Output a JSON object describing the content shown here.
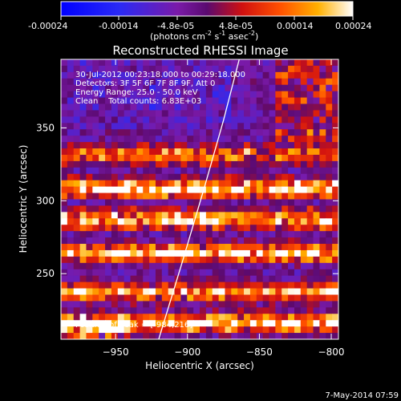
{
  "colorbar": {
    "ticks": [
      "-0.00024",
      "-0.00014",
      "-4.8e-05",
      "4.8e-05",
      "0.00014",
      "0.00024"
    ],
    "units_prefix": "(photons cm",
    "units_exp1": "-2",
    "units_mid": " s",
    "units_exp2": "-1",
    "units_mid2": " asec",
    "units_exp3": "-2",
    "units_suffix": ")"
  },
  "chart_data": {
    "type": "heatmap",
    "title": "Reconstructed RHESSI Image",
    "xlabel": "Heliocentric X (arcsec)",
    "ylabel": "Heliocentric Y (arcsec)",
    "xlim": [
      -988,
      -795
    ],
    "ylim": [
      205,
      397
    ],
    "x_ticks": [
      -950,
      -900,
      -850,
      -800
    ],
    "y_ticks": [
      250,
      300,
      350
    ],
    "colorbar_range": [
      -0.00024,
      0.00024
    ],
    "annotations": [
      "30-Jul-2012 00:23:18.000 to 00:29:18.000",
      "Detectors: 3F 5F 6F 7F 8F 9F, Att 0",
      "Energy Range: 25.0 - 50.0 keV",
      "Clean    Total counts: 6.83E+03"
    ],
    "peak_label": "Position of Peak = [-984,216]",
    "peak": [
      -984,
      216
    ],
    "limb_curve": [
      [
        -920,
        205
      ],
      [
        -903,
        260
      ],
      [
        -888,
        310
      ],
      [
        -875,
        355
      ],
      [
        -864,
        397
      ]
    ]
  },
  "footer": {
    "date": "7-May-2014 07:59"
  }
}
